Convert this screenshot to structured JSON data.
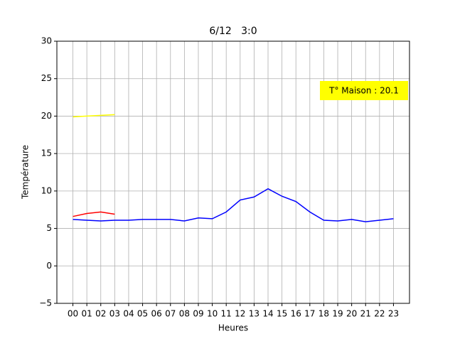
{
  "chart_data": {
    "type": "line",
    "title": "6/12   3:0",
    "x_label": "Heures",
    "y_label": "Température",
    "categories": [
      "00",
      "01",
      "02",
      "03",
      "04",
      "05",
      "06",
      "07",
      "08",
      "09",
      "10",
      "11",
      "12",
      "13",
      "14",
      "15",
      "16",
      "17",
      "18",
      "19",
      "20",
      "21",
      "22",
      "23"
    ],
    "series": [
      {
        "color": "#0000ff",
        "values": [
          6.2,
          6.1,
          6.0,
          6.1,
          6.1,
          6.2,
          6.2,
          6.2,
          6.0,
          6.4,
          6.3,
          7.2,
          8.8,
          9.2,
          10.3,
          9.3,
          8.6,
          7.2,
          6.1,
          6.0,
          6.2,
          5.9,
          6.1,
          6.3
        ]
      },
      {
        "color": "#ff0000",
        "values": [
          6.6,
          7.0,
          7.2,
          6.9,
          null,
          null,
          null,
          null,
          null,
          null,
          null,
          null,
          null,
          null,
          null,
          null,
          null,
          null,
          null,
          null,
          null,
          null,
          null,
          null
        ]
      },
      {
        "color": "#ffff00",
        "values": [
          19.9,
          20.0,
          20.1,
          20.2,
          null,
          null,
          null,
          null,
          null,
          null,
          null,
          null,
          null,
          null,
          null,
          null,
          null,
          null,
          null,
          null,
          null,
          null,
          null,
          null
        ]
      }
    ],
    "annotation": "T° Maison : 20.1",
    "annotation_color": "#ffff00",
    "ylim": [
      -5,
      30
    ],
    "yticks": [
      {
        "value": -5,
        "label": "−5"
      },
      0,
      5,
      10,
      15,
      20,
      25,
      30
    ],
    "grid": true
  }
}
